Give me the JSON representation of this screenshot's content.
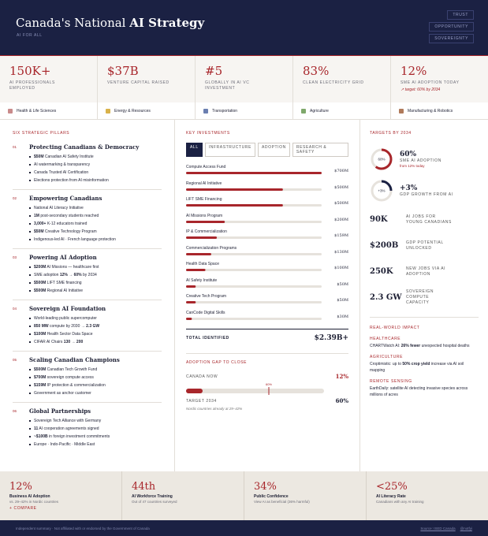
{
  "header": {
    "title_lead": "Canada's National",
    "title_emphasis": "AI Strategy",
    "subtitle": "AI FOR ALL",
    "nav": [
      "TRUST",
      "OPPORTUNITY",
      "SOVEREIGNTY"
    ]
  },
  "kpis": [
    {
      "value": "150K+",
      "label": "AI PROFESSIONALS EMPLOYED"
    },
    {
      "value": "$37B",
      "label": "VENTURE CAPITAL RAISED"
    },
    {
      "value": "#5",
      "label": "GLOBALLY IN AI VC INVESTMENT"
    },
    {
      "value": "83%",
      "label": "CLEAN ELECTRICITY GRID"
    },
    {
      "value": "12%",
      "label": "SME AI ADOPTION TODAY",
      "note": "↗ target: 60% by 2034"
    }
  ],
  "sectors": [
    "Health & Life Sciences",
    "Energy & Resources",
    "Transportation",
    "Agriculture",
    "Manufacturing & Robotics"
  ],
  "pillars": {
    "title": "SIX STRATEGIC PILLARS",
    "items": [
      {
        "number": "01",
        "title": "Protecting Canadians & Democracy",
        "bullets": [
          [
            {
              "text": "$50M",
              "bold": true
            },
            " Canadian AI Safety Institute"
          ],
          [
            "AI watermarking & transparency"
          ],
          [
            "Canada Trusted AI Certification"
          ],
          [
            "Elections protection from AI misinformation"
          ]
        ]
      },
      {
        "number": "02",
        "title": "Empowering Canadians",
        "bullets": [
          [
            "National AI Literacy Initiative"
          ],
          [
            {
              "text": "1M",
              "bold": true
            },
            " post-secondary students reached"
          ],
          [
            {
              "text": "3,000+",
              "bold": true
            },
            " K-12 educators trained"
          ],
          [
            {
              "text": "$50M",
              "bold": true
            },
            " Creative Technology Program"
          ],
          [
            "Indigenous-led AI · French language protection"
          ]
        ]
      },
      {
        "number": "03",
        "title": "Powering AI Adoption",
        "bullets": [
          [
            {
              "text": "$200M",
              "bold": true
            },
            " AI Missions — healthcare first"
          ],
          [
            "SME adoption ",
            {
              "text": "12% → 60%",
              "bold": true
            },
            " by 2034"
          ],
          [
            {
              "text": "$500M",
              "bold": true
            },
            " LIFT SME financing"
          ],
          [
            {
              "text": "$500M",
              "bold": true
            },
            " Regional AI Initiative"
          ]
        ]
      },
      {
        "number": "04",
        "title": "Sovereign AI Foundation",
        "bullets": [
          [
            "World-leading public supercomputer"
          ],
          [
            {
              "text": "850 MW",
              "bold": true
            },
            " compute by 2030 → ",
            {
              "text": "2.3 GW",
              "bold": true
            }
          ],
          [
            {
              "text": "$100M",
              "bold": true
            },
            " Health Sector Data Space"
          ],
          [
            "CIFAR AI Chairs ",
            {
              "text": "130 → 200",
              "bold": true
            }
          ]
        ]
      },
      {
        "number": "05",
        "title": "Scaling Canadian Champions",
        "bullets": [
          [
            {
              "text": "$500M",
              "bold": true
            },
            " Canadian Tech Growth Fund"
          ],
          [
            {
              "text": "$700M",
              "bold": true
            },
            " sovereign compute access"
          ],
          [
            {
              "text": "$159M",
              "bold": true
            },
            " IP protection & commercialization"
          ],
          [
            "Government as anchor customer"
          ]
        ]
      },
      {
        "number": "06",
        "title": "Global Partnerships",
        "bullets": [
          [
            "Sovereign Tech Alliance with Germany"
          ],
          [
            {
              "text": "11",
              "bold": true
            },
            " AI cooperation agreements signed"
          ],
          [
            {
              "text": "~$100B",
              "bold": true
            },
            " in foreign investment commitments"
          ],
          [
            "Europe · Indo-Pacific · Middle East"
          ]
        ]
      }
    ]
  },
  "investments": {
    "title": "KEY INVESTMENTS",
    "tabs": [
      "ALL",
      "INFRASTRUCTURE",
      "ADOPTION",
      "RESEARCH & SAFETY"
    ],
    "xlim": [
      0,
      700
    ],
    "items": [
      {
        "label": "Compute Access Fund",
        "value": 700,
        "value_label": "$700M"
      },
      {
        "label": "Regional AI Initiative",
        "value": 500,
        "value_label": "$500M"
      },
      {
        "label": "LIFT SME Financing",
        "value": 500,
        "value_label": "$500M"
      },
      {
        "label": "AI Missions Program",
        "value": 200,
        "value_label": "$200M"
      },
      {
        "label": "IP & Commercialization",
        "value": 159,
        "value_label": "$159M"
      },
      {
        "label": "Commercialization Programs",
        "value": 130,
        "value_label": "$130M"
      },
      {
        "label": "Health Data Space",
        "value": 100,
        "value_label": "$100M"
      },
      {
        "label": "AI Safety Institute",
        "value": 50,
        "value_label": "$50M"
      },
      {
        "label": "Creative Tech Program",
        "value": 50,
        "value_label": "$50M"
      },
      {
        "label": "CanCode Digital Skills",
        "value": 30,
        "value_label": "$30M"
      }
    ],
    "total_label": "TOTAL IDENTIFIED",
    "total": "$2.39B+"
  },
  "adoption_gap": {
    "title": "ADOPTION GAP TO CLOSE",
    "now_label": "CANADA NOW",
    "now": {
      "value": 12,
      "label": "12%"
    },
    "target_label": "TARGET 2034",
    "target": {
      "value": 60,
      "label": "60%"
    },
    "note": "Nordic countries already at 29–42%"
  },
  "targets": {
    "title": "TARGETS BY 2034",
    "rings": [
      {
        "value": 60,
        "label": "60%",
        "title": "SME AI ADOPTION",
        "note": "from 12% today"
      },
      {
        "label": "+3%",
        "title": "GDP GROWTH FROM AI"
      }
    ],
    "stats": [
      {
        "value": "90K",
        "label": "AI JOBS FOR YOUNG CANADIANS"
      },
      {
        "value": "$200B",
        "label": "GDP POTENTIAL UNLOCKED"
      },
      {
        "value": "250K",
        "label": "NEW JOBS VIA AI ADOPTION"
      },
      {
        "value": "2.3 GW",
        "label": "SOVEREIGN COMPUTE CAPACITY"
      }
    ]
  },
  "impact": {
    "title": "REAL-WORLD IMPACT",
    "items": [
      {
        "category": "HEALTHCARE",
        "text": [
          "CHARTWatch AI: ",
          {
            "text": "26% fewer",
            "bold": true
          },
          " unexpected hospital deaths"
        ]
      },
      {
        "category": "AGRICULTURE",
        "text": [
          "Croptimistic: up to ",
          {
            "text": "50% crop yield",
            "bold": true
          },
          " increase via AI soil mapping"
        ]
      },
      {
        "category": "REMOTE SENSING",
        "text": [
          "EarthDaily: satellite AI detecting invasive species across millions of acres"
        ]
      }
    ]
  },
  "gaps": [
    {
      "value": "12%",
      "title": "Business AI Adoption",
      "note": "vs. 29–42% in Nordic countries",
      "action": "+ COMPARE"
    },
    {
      "value": "44th",
      "title": "AI Workforce Training",
      "note": "Out of 47 countries surveyed"
    },
    {
      "value": "34%",
      "title": "Public Confidence",
      "note": "View AI as beneficial (36% harmful)"
    },
    {
      "value": "<25%",
      "title": "AI Literacy Rate",
      "note": "Canadians with any AI training"
    }
  ],
  "footer": {
    "disclaimer": "Independent summary · Not affiliated with or endorsed by the Government of Canada",
    "source": "Source: ISED Canada",
    "handle": "@notfyi"
  }
}
